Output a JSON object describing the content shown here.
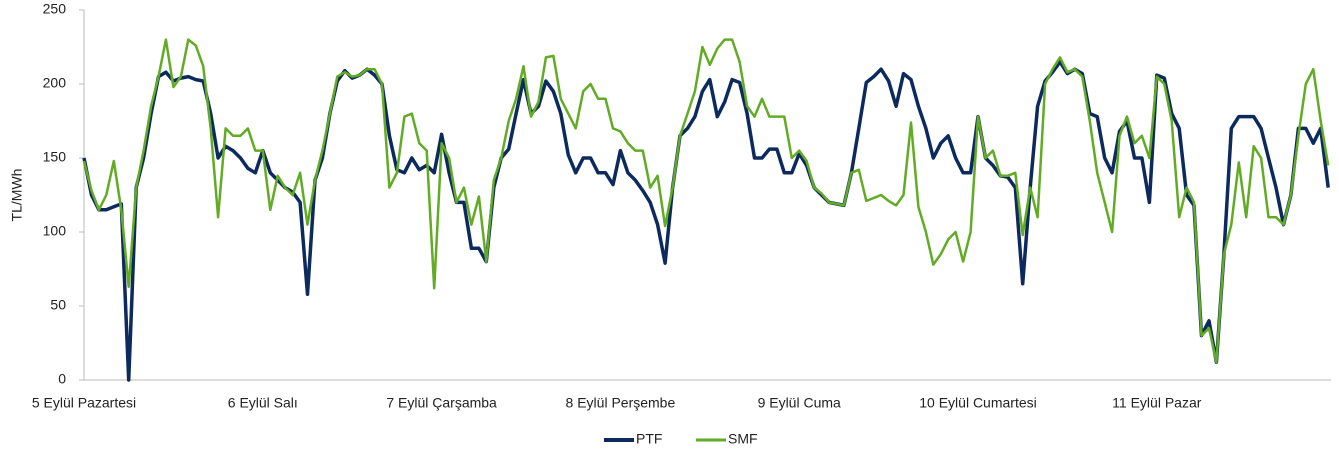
{
  "chart_data": {
    "type": "line",
    "ylabel": "TL/MWh",
    "categories": [
      "5 Eylül Pazartesi",
      null,
      null,
      null,
      null,
      null,
      null,
      null,
      null,
      null,
      null,
      null,
      null,
      null,
      null,
      null,
      null,
      null,
      null,
      null,
      null,
      null,
      null,
      null,
      "6 Eylül Salı",
      null,
      null,
      null,
      null,
      null,
      null,
      null,
      null,
      null,
      null,
      null,
      null,
      null,
      null,
      null,
      null,
      null,
      null,
      null,
      null,
      null,
      null,
      null,
      "7 Eylül Çarşamba",
      null,
      null,
      null,
      null,
      null,
      null,
      null,
      null,
      null,
      null,
      null,
      null,
      null,
      null,
      null,
      null,
      null,
      null,
      null,
      null,
      null,
      null,
      null,
      "8 Eylül Perşembe",
      null,
      null,
      null,
      null,
      null,
      null,
      null,
      null,
      null,
      null,
      null,
      null,
      null,
      null,
      null,
      null,
      null,
      null,
      null,
      null,
      null,
      null,
      null,
      "9 Eylül Cuma",
      null,
      null,
      null,
      null,
      null,
      null,
      null,
      null,
      null,
      null,
      null,
      null,
      null,
      null,
      null,
      null,
      null,
      null,
      null,
      null,
      null,
      null,
      null,
      "10 Eylül Cumartesi",
      null,
      null,
      null,
      null,
      null,
      null,
      null,
      null,
      null,
      null,
      null,
      null,
      null,
      null,
      null,
      null,
      null,
      null,
      null,
      null,
      null,
      null,
      null,
      "11 Eylül Pazar",
      null,
      null,
      null,
      null,
      null,
      null,
      null,
      null,
      null,
      null,
      null,
      null,
      null,
      null,
      null,
      null,
      null,
      null,
      null,
      null,
      null,
      null,
      null
    ],
    "series": [
      {
        "name": "PTF",
        "color": "#0d2a5e",
        "values": [
          150,
          125,
          115,
          115,
          117,
          119,
          0,
          130,
          150,
          180,
          205,
          208,
          202,
          204,
          205,
          203,
          202,
          180,
          150,
          158,
          155,
          150,
          143,
          140,
          155,
          140,
          135,
          130,
          127,
          120,
          58,
          135,
          150,
          180,
          202,
          209,
          204,
          206,
          210,
          206,
          200,
          165,
          142,
          140,
          150,
          142,
          145,
          140,
          166,
          140,
          120,
          120,
          89,
          89,
          80,
          130,
          150,
          156,
          180,
          203,
          180,
          185,
          202,
          195,
          180,
          152,
          140,
          150,
          150,
          140,
          140,
          132,
          155,
          140,
          135,
          128,
          120,
          105,
          79,
          130,
          165,
          170,
          178,
          195,
          203,
          178,
          188,
          203,
          201,
          180,
          150,
          150,
          156,
          156,
          140,
          140,
          153,
          145,
          130,
          125,
          120,
          119,
          118,
          140,
          170,
          201,
          205,
          210,
          202,
          185,
          207,
          203,
          185,
          170,
          150,
          160,
          165,
          150,
          140,
          140,
          178,
          150,
          145,
          138,
          137,
          130,
          65,
          130,
          185,
          202,
          208,
          215,
          207,
          210,
          207,
          180,
          178,
          150,
          140,
          168,
          175,
          150,
          150,
          120,
          206,
          204,
          180,
          170,
          125,
          118,
          30,
          40,
          12,
          85,
          170,
          178,
          178,
          178,
          170,
          150,
          130,
          105,
          125,
          170,
          170,
          160,
          170,
          130
        ]
      },
      {
        "name": "SMF",
        "color": "#62ab25",
        "values": [
          148,
          128,
          115,
          125,
          148,
          115,
          63,
          130,
          155,
          185,
          205,
          230,
          198,
          205,
          230,
          226,
          212,
          170,
          110,
          170,
          165,
          165,
          170,
          155,
          155,
          115,
          138,
          130,
          125,
          140,
          105,
          135,
          155,
          180,
          205,
          208,
          205,
          206,
          210,
          210,
          200,
          130,
          140,
          178,
          180,
          160,
          155,
          62,
          160,
          150,
          120,
          130,
          105,
          124,
          80,
          135,
          150,
          175,
          190,
          212,
          178,
          188,
          218,
          219,
          190,
          180,
          170,
          195,
          200,
          190,
          190,
          170,
          168,
          160,
          155,
          155,
          130,
          138,
          104,
          130,
          165,
          180,
          195,
          225,
          213,
          224,
          230,
          230,
          215,
          185,
          178,
          190,
          178,
          178,
          178,
          150,
          155,
          148,
          130,
          126,
          120,
          119,
          118,
          140,
          142,
          121,
          123,
          125,
          121,
          118,
          125,
          174,
          117,
          100,
          78,
          85,
          95,
          100,
          80,
          100,
          178,
          150,
          155,
          138,
          138,
          140,
          98,
          130,
          110,
          200,
          210,
          218,
          208,
          210,
          205,
          175,
          140,
          120,
          100,
          165,
          178,
          160,
          165,
          150,
          205,
          200,
          175,
          110,
          130,
          120,
          30,
          35,
          12,
          85,
          105,
          147,
          110,
          158,
          150,
          110,
          110,
          105,
          125,
          165,
          200,
          210,
          175,
          145
        ]
      }
    ],
    "ylim": [
      0,
      250
    ],
    "yticks": [
      0,
      50,
      100,
      150,
      200,
      250
    ],
    "legend": "bottom"
  }
}
